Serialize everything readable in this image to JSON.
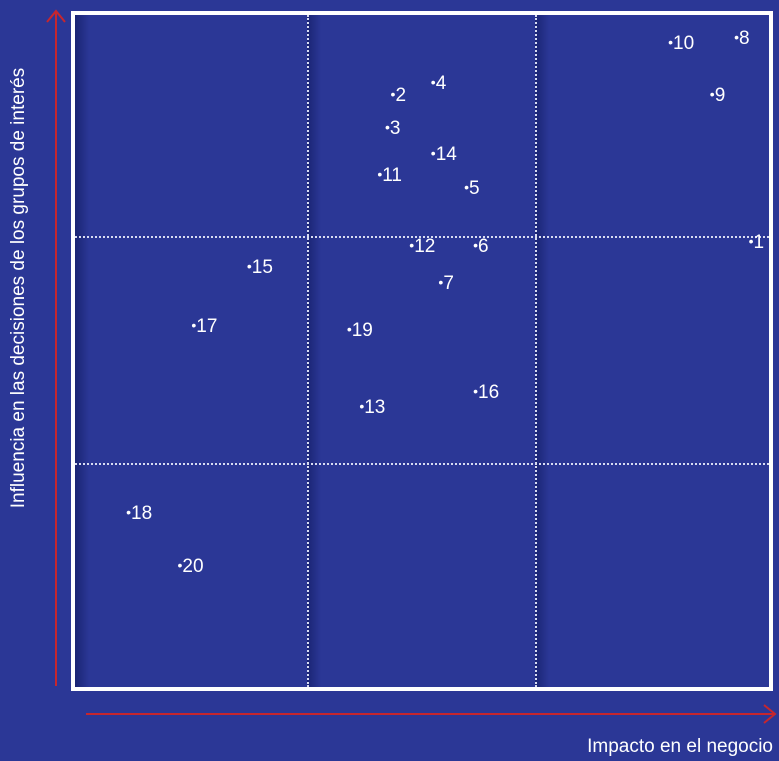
{
  "chart_data": {
    "type": "scatter",
    "xlabel": "Impacto en el negocio",
    "ylabel": "Influencia en las decisiones de los grupos de interés",
    "grid": true,
    "grid_divisions": 3,
    "points": [
      {
        "label": "1",
        "x": 0.975,
        "y": 0.664
      },
      {
        "label": "2",
        "x": 0.459,
        "y": 0.883
      },
      {
        "label": "3",
        "x": 0.451,
        "y": 0.834
      },
      {
        "label": "4",
        "x": 0.517,
        "y": 0.9
      },
      {
        "label": "5",
        "x": 0.565,
        "y": 0.744
      },
      {
        "label": "6",
        "x": 0.578,
        "y": 0.658
      },
      {
        "label": "7",
        "x": 0.528,
        "y": 0.603
      },
      {
        "label": "8",
        "x": 0.954,
        "y": 0.967
      },
      {
        "label": "9",
        "x": 0.919,
        "y": 0.883
      },
      {
        "label": "10",
        "x": 0.859,
        "y": 0.96
      },
      {
        "label": "11",
        "x": 0.44,
        "y": 0.764
      },
      {
        "label": "12",
        "x": 0.486,
        "y": 0.658
      },
      {
        "label": "13",
        "x": 0.414,
        "y": 0.418
      },
      {
        "label": "14",
        "x": 0.517,
        "y": 0.794
      },
      {
        "label": "15",
        "x": 0.252,
        "y": 0.627
      },
      {
        "label": "16",
        "x": 0.578,
        "y": 0.44
      },
      {
        "label": "17",
        "x": 0.172,
        "y": 0.539
      },
      {
        "label": "18",
        "x": 0.078,
        "y": 0.261
      },
      {
        "label": "19",
        "x": 0.396,
        "y": 0.532
      },
      {
        "label": "20",
        "x": 0.152,
        "y": 0.181
      }
    ]
  },
  "colors": {
    "background": "#2b3796",
    "frame": "#ffffff",
    "axis_arrow": "#c6262e",
    "grid": "#d8dcf2",
    "text": "#ffffff"
  }
}
